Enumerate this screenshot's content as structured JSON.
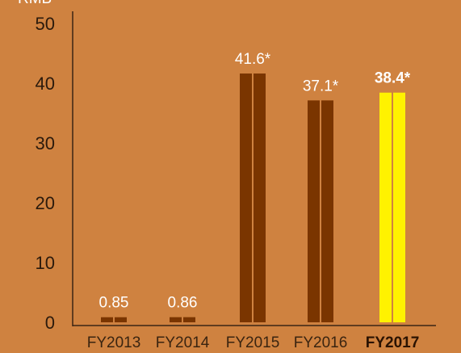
{
  "chart_data": {
    "type": "bar",
    "title": "",
    "xlabel": "",
    "ylabel": "",
    "unit_label": "RMB",
    "categories": [
      "FY2013",
      "FY2014",
      "FY2015",
      "FY2016",
      "FY2017"
    ],
    "values": [
      0.85,
      0.86,
      41.6,
      37.1,
      38.4
    ],
    "data_labels": [
      "0.85",
      "0.86",
      "41.6*",
      "37.1*",
      "38.4*"
    ],
    "highlight_index": 4,
    "ylim": [
      0,
      52
    ],
    "yticks": [
      0,
      10,
      20,
      30,
      40,
      50
    ],
    "grid": false,
    "legend": "none",
    "colors": {
      "background": "#cf8240",
      "bar": "#7a3500",
      "highlight_bar": "#fff200",
      "axis": "#3b2414",
      "label_text": "#ffffff"
    }
  }
}
